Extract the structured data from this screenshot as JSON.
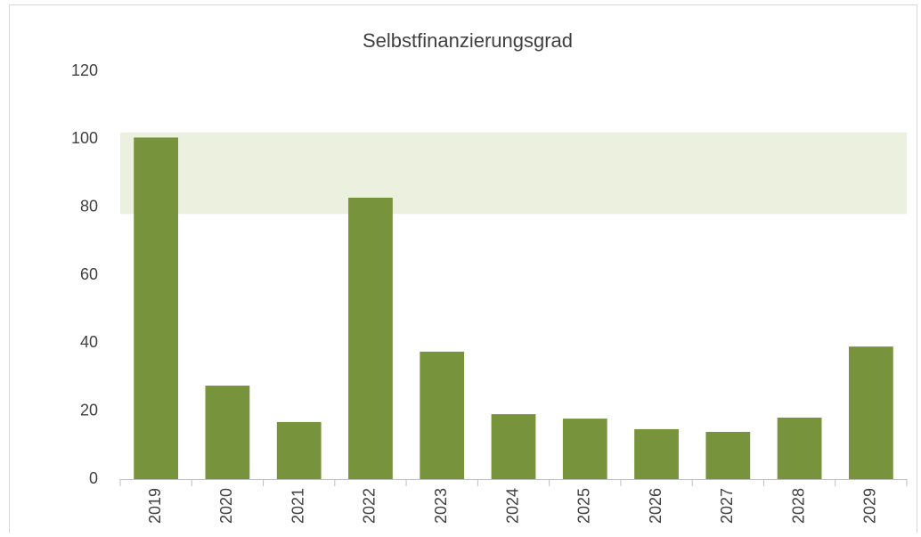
{
  "chart_data": {
    "type": "bar",
    "title": "Selbstfinanzierungsgrad",
    "categories": [
      "2019",
      "2020",
      "2021",
      "2022",
      "2023",
      "2024",
      "2025",
      "2026",
      "2027",
      "2028",
      "2029"
    ],
    "values": [
      100.5,
      27.5,
      16.8,
      82.8,
      37.5,
      19.1,
      17.8,
      14.7,
      13.9,
      18.1,
      39
    ],
    "color": "#77933c",
    "band": {
      "from": 78,
      "to": 102,
      "color": "#ebf1de"
    },
    "ylim": [
      0,
      120
    ],
    "yticks": [
      0,
      20,
      40,
      60,
      80,
      100,
      120
    ],
    "grid": false
  }
}
